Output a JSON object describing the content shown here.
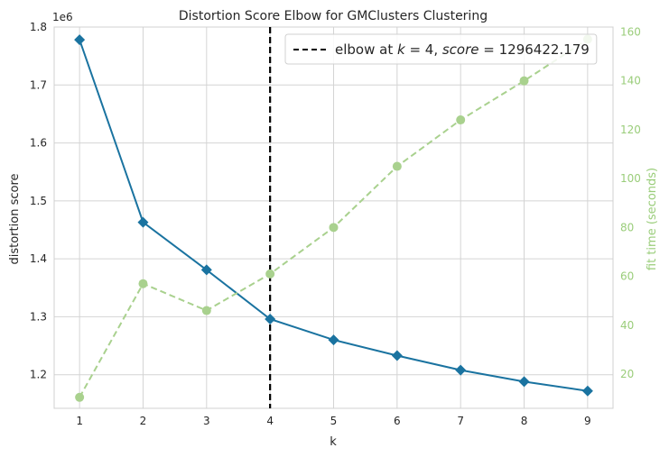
{
  "chart_data": {
    "type": "line",
    "title": "Distortion Score Elbow for GMClusters Clustering",
    "xlabel": "k",
    "ylabel": "distortion score",
    "y_offset_label": "1e6",
    "y2label": "fit time (seconds)",
    "x": [
      1,
      2,
      3,
      4,
      5,
      6,
      7,
      8,
      9
    ],
    "xlim": [
      0.6,
      9.4
    ],
    "ylim": [
      1.142,
      1.8
    ],
    "y2lim": [
      6.0,
      162.0
    ],
    "x_ticks": [
      "1",
      "2",
      "3",
      "4",
      "5",
      "6",
      "7",
      "8",
      "9"
    ],
    "y_ticks": [
      1.2,
      1.3,
      1.4,
      1.5,
      1.6,
      1.7,
      1.8
    ],
    "y_tick_labels": [
      "1.2",
      "1.3",
      "1.4",
      "1.5",
      "1.6",
      "1.7",
      "1.8"
    ],
    "y2_ticks": [
      20,
      40,
      60,
      80,
      100,
      120,
      140,
      160
    ],
    "y2_tick_labels": [
      "20",
      "40",
      "60",
      "80",
      "100",
      "120",
      "140",
      "160"
    ],
    "grid": true,
    "legend_position": "top-right",
    "series": [
      {
        "axis": "left",
        "style": "solid",
        "marker": "diamond",
        "color": "#1a73a0",
        "values": [
          1.778,
          1.463,
          1.381,
          1.296,
          1.26,
          1.233,
          1.208,
          1.188,
          1.172
        ]
      },
      {
        "axis": "right",
        "style": "dashed",
        "marker": "circle",
        "color": "#a9d18e",
        "values": [
          10.5,
          57,
          46,
          61,
          80,
          105,
          124,
          140,
          157
        ]
      }
    ],
    "elbow": {
      "k": 4,
      "legend_label": "elbow at $k=4$, $score=1296422.179$",
      "legend_prefix": "elbow at ",
      "legend_k_var": "k",
      "legend_k_eq": " = 4, ",
      "legend_score_var": "score",
      "legend_score_eq": " = 1296422.179",
      "color": "#000000"
    }
  }
}
